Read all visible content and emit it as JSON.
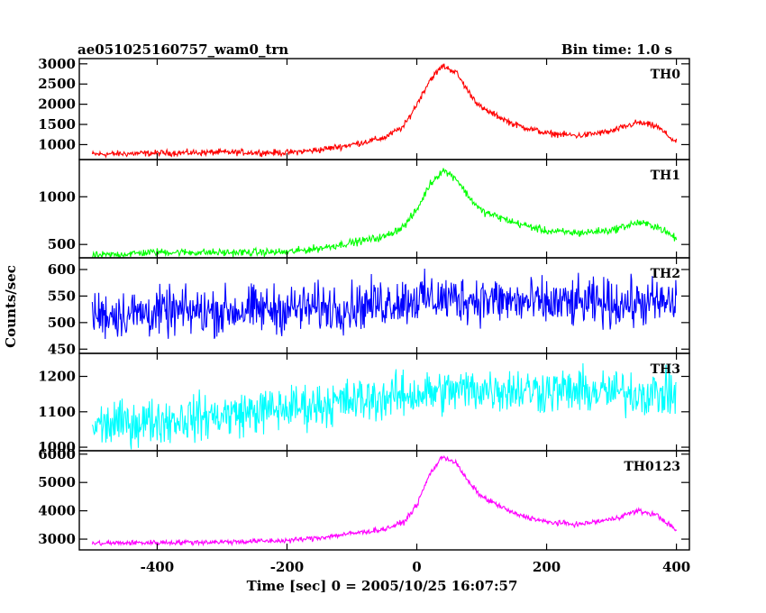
{
  "header": {
    "title": "ae051025160757_wam0_trn",
    "bin_time": "Bin time: 1.0 s"
  },
  "chart_data": {
    "type": "line",
    "xlabel": "Time [sec] 0 = 2005/10/25 16:07:57",
    "ylabel": "Counts/sec",
    "xlim": [
      -520,
      420
    ],
    "xticks": [
      -400,
      -200,
      0,
      200,
      400
    ],
    "panels": [
      {
        "name": "TH0",
        "color": "#ff0000",
        "ylim": [
          630,
          3130
        ],
        "yticks": [
          1000,
          1500,
          2000,
          2500,
          3000
        ],
        "noise": 55,
        "points": [
          [
            -500,
            760
          ],
          [
            -400,
            790
          ],
          [
            -300,
            810
          ],
          [
            -200,
            800
          ],
          [
            -150,
            870
          ],
          [
            -100,
            1000
          ],
          [
            -50,
            1170
          ],
          [
            -20,
            1450
          ],
          [
            0,
            2000
          ],
          [
            20,
            2600
          ],
          [
            40,
            2950
          ],
          [
            60,
            2800
          ],
          [
            80,
            2300
          ],
          [
            100,
            1900
          ],
          [
            150,
            1500
          ],
          [
            200,
            1280
          ],
          [
            250,
            1220
          ],
          [
            300,
            1330
          ],
          [
            340,
            1550
          ],
          [
            370,
            1450
          ],
          [
            400,
            1050
          ]
        ]
      },
      {
        "name": "TH1",
        "color": "#00ff00",
        "ylim": [
          360,
          1390
        ],
        "yticks": [
          500,
          1000
        ],
        "noise": 28,
        "points": [
          [
            -500,
            380
          ],
          [
            -400,
            420
          ],
          [
            -300,
            415
          ],
          [
            -200,
            420
          ],
          [
            -150,
            460
          ],
          [
            -100,
            520
          ],
          [
            -50,
            580
          ],
          [
            -20,
            690
          ],
          [
            0,
            860
          ],
          [
            20,
            1130
          ],
          [
            40,
            1280
          ],
          [
            60,
            1200
          ],
          [
            80,
            1000
          ],
          [
            100,
            850
          ],
          [
            150,
            730
          ],
          [
            200,
            640
          ],
          [
            250,
            620
          ],
          [
            300,
            650
          ],
          [
            340,
            730
          ],
          [
            370,
            690
          ],
          [
            400,
            560
          ]
        ]
      },
      {
        "name": "TH2",
        "color": "#0000ff",
        "ylim": [
          442,
          622
        ],
        "yticks": [
          450,
          500,
          550,
          600
        ],
        "noise": 32,
        "points": [
          [
            -500,
            515
          ],
          [
            -300,
            522
          ],
          [
            -100,
            530
          ],
          [
            0,
            545
          ],
          [
            80,
            545
          ],
          [
            200,
            535
          ],
          [
            400,
            537
          ]
        ]
      },
      {
        "name": "TH3",
        "color": "#00ffff",
        "ylim": [
          990,
          1265
        ],
        "yticks": [
          1000,
          1100,
          1200
        ],
        "noise": 45,
        "points": [
          [
            -500,
            1060
          ],
          [
            -300,
            1090
          ],
          [
            -200,
            1110
          ],
          [
            -100,
            1130
          ],
          [
            0,
            1150
          ],
          [
            100,
            1165
          ],
          [
            200,
            1160
          ],
          [
            400,
            1150
          ]
        ]
      },
      {
        "name": "TH0123",
        "color": "#ff00ff",
        "ylim": [
          2620,
          6120
        ],
        "yticks": [
          3000,
          4000,
          5000,
          6000
        ],
        "noise": 65,
        "points": [
          [
            -500,
            2850
          ],
          [
            -400,
            2880
          ],
          [
            -300,
            2900
          ],
          [
            -200,
            2950
          ],
          [
            -150,
            3050
          ],
          [
            -100,
            3200
          ],
          [
            -50,
            3350
          ],
          [
            -20,
            3600
          ],
          [
            0,
            4200
          ],
          [
            20,
            5300
          ],
          [
            40,
            5920
          ],
          [
            60,
            5700
          ],
          [
            80,
            5000
          ],
          [
            100,
            4500
          ],
          [
            150,
            3900
          ],
          [
            200,
            3600
          ],
          [
            250,
            3520
          ],
          [
            300,
            3700
          ],
          [
            340,
            4000
          ],
          [
            370,
            3850
          ],
          [
            400,
            3300
          ]
        ]
      }
    ]
  }
}
